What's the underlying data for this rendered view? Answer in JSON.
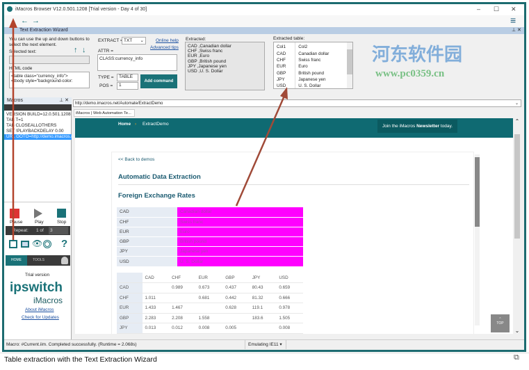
{
  "window": {
    "title": "iMacros Browser V12.0.501.1208 [Trial version - Day 4 of 30]",
    "minimize": "–",
    "maximize": "☐",
    "close": "✕",
    "menu": "≡"
  },
  "watermark": {
    "text": "河东软件园",
    "url": "www.pc0359.cn"
  },
  "wizard": {
    "title": "Text Extraction Wizard",
    "instructions": "You can use the up and down buttons to select the next element.",
    "selected_text_label": "Selected text:",
    "selected_text_value": "",
    "html_code_label": "HTML code",
    "html_code_value": "<table class=\"currency_info\">    <tbody style=\"background-color:",
    "extract_label": "EXTRACT =",
    "extract_value": "TXT",
    "online_help": "Online help",
    "advanced_tips": "Advanced tips",
    "attr_label": "ATTR =",
    "attr_value": "CLASS:currency_info",
    "type_label": "TYPE =",
    "type_value": "TABLE",
    "pos_label": "POS =",
    "pos_value": "1",
    "add_command": "Add command",
    "extracted_label": "Extracted:",
    "extracted_lines": [
      "CAD ,Canadian dollar",
      "CHF ,Swiss franc",
      "EUR ,Euro",
      "GBP ,British pound",
      "JPY ,Japanese yen",
      "USD ,U. S. Dollar"
    ],
    "extracted_table_label": "Extracted table:",
    "extracted_table": {
      "headers": [
        "Col1",
        "Col2"
      ],
      "rows": [
        [
          "CAD",
          "Canadian dollar"
        ],
        [
          "CHF",
          "Swiss franc"
        ],
        [
          "EUR",
          "Euro"
        ],
        [
          "GBP",
          "British pound"
        ],
        [
          "JPY",
          "Japanese yen"
        ],
        [
          "USD",
          "U. S. Dollar"
        ]
      ]
    }
  },
  "macros": {
    "title": "Macros",
    "lines": [
      "VERSION BUILD=12.0.501.1208",
      "TAB T=1",
      "TAB CLOSEALLOTHERS",
      "SET !PLAYBACKDELAY 0.00",
      "URL GOTO=http://demo.imacros.net/Automate/ExtractDemo"
    ],
    "selected_line": 4,
    "pause": "Pause",
    "play": "Play",
    "stop": "Stop",
    "repeat_label": "Repeat:",
    "repeat_of": "1 of",
    "repeat_value": "3",
    "tabs": [
      "HOME",
      "TOOLS"
    ],
    "trial": "Trial version",
    "brand": "ipswitch",
    "product": "iMacros",
    "about": "About iMacros",
    "updates": "Check for Updates"
  },
  "browser": {
    "url": "http://demo.imacros.net/Automate/ExtractDemo",
    "tab": "iMacros | Web Automation Te...",
    "nav_home": "Home",
    "nav_sep": "›",
    "nav_page": "ExtractDemo",
    "newsletter_pre": "Join the iMacros ",
    "newsletter_bold": "Newsletter",
    "newsletter_post": " today.",
    "back_link": "<< Back to demos",
    "heading": "Automatic Data Extraction",
    "subheading": "Foreign Exchange Rates",
    "currency_table": [
      [
        "CAD",
        "Canadian dollar"
      ],
      [
        "CHF",
        "Swiss franc"
      ],
      [
        "EUR",
        "Euro"
      ],
      [
        "GBP",
        "British pound"
      ],
      [
        "JPY",
        "Japanese yen"
      ],
      [
        "USD",
        "U. S. Dollar"
      ]
    ],
    "highlight_color": "#ff00ff",
    "matrix": {
      "headers": [
        "",
        "CAD",
        "CHF",
        "EUR",
        "GBP",
        "JPY",
        "USD"
      ],
      "rows": [
        [
          "CAD",
          "",
          "0.989",
          "0.673",
          "0.437",
          "80.43",
          "0.659"
        ],
        [
          "CHF",
          "1.011",
          "",
          "0.681",
          "0.442",
          "81.32",
          "0.666"
        ],
        [
          "EUR",
          "1.433",
          "1.467",
          "",
          "0.628",
          "119.1",
          "0.978"
        ],
        [
          "GBP",
          "2.283",
          "2.208",
          "1.558",
          "",
          "183.6",
          "1.505"
        ],
        [
          "JPY",
          "0.013",
          "0.012",
          "0.008",
          "0.005",
          "",
          "0.008"
        ]
      ]
    },
    "top_button": "TOP"
  },
  "status": {
    "message": "Macro: #Current.iim. Completed successfully. (Runtime = 2.068s)",
    "emulation": "Emulating IE11 ▾"
  },
  "caption": "Table extraction with the Text Extraction Wizard"
}
